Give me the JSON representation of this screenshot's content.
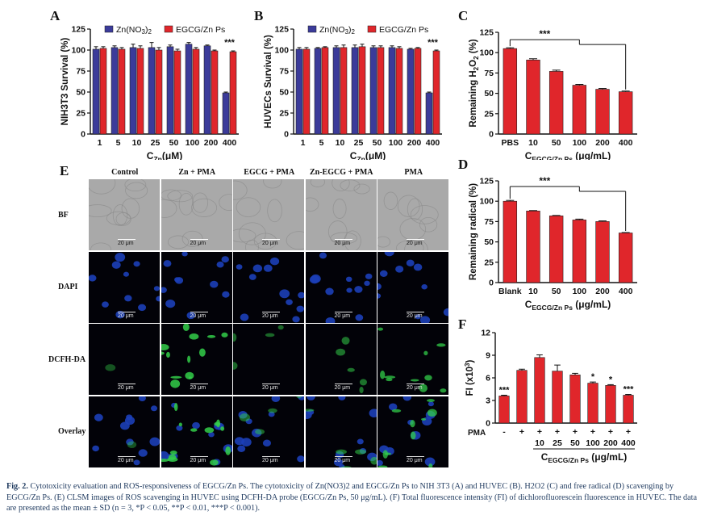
{
  "figure": {
    "caption_label": "Fig. 2.",
    "caption_text": "Cytotoxicity evaluation and ROS-responsiveness of EGCG/Zn Ps. The cytotoxicity of Zn(NO3)2 and EGCG/Zn Ps to NIH 3T3 (A) and HUVEC (B). H2O2 (C) and free radical (D) scavenging by EGCG/Zn Ps. (E) CLSM images of ROS scavenging in HUVEC using DCFH-DA probe (EGCG/Zn Ps, 50 μg/mL). (F) Total fluorescence intensity (FI) of dichlorofluorescein fluorescence in HUVEC. The data are presented as the mean ± SD (n = 3, *P < 0.05, **P < 0.01, ***P < 0.001)."
  },
  "panel_letters": {
    "a": "A",
    "b": "B",
    "c": "C",
    "d": "D",
    "e": "E",
    "f": "F"
  },
  "colors": {
    "bar_red": "#e0262b",
    "bar_blue": "#3b3b9a",
    "axis": "#111111"
  },
  "chart_data": [
    {
      "id": "A",
      "type": "bar",
      "ylabel": "NIH3T3 Survival (%)",
      "xlabel": "CZn(μM)",
      "xlabel_main": "C",
      "xlabel_sub": "Zn",
      "xlabel_tail": "(μM)",
      "categories": [
        "1",
        "5",
        "10",
        "25",
        "50",
        "100",
        "200",
        "400"
      ],
      "ylim": [
        0,
        125
      ],
      "yticks": [
        0,
        25,
        50,
        75,
        100,
        125
      ],
      "ytick_labels": [
        "0",
        "25",
        "50",
        "75",
        "100",
        "125"
      ],
      "legend_placement": "top",
      "series": [
        {
          "name": "Zn(NO3)2",
          "color": "#3b3b9a",
          "values": [
            101,
            103,
            103,
            103,
            104,
            107,
            105,
            49
          ],
          "errors": [
            3,
            2,
            4,
            6,
            2,
            2,
            1,
            1
          ]
        },
        {
          "name": "EGCG/Zn Ps",
          "color": "#e0262b",
          "values": [
            102,
            101,
            102,
            100,
            99,
            101,
            99,
            98
          ],
          "errors": [
            2,
            2,
            3,
            3,
            2,
            2,
            1,
            1
          ]
        }
      ],
      "annotations": [
        {
          "text": "***",
          "category": "400"
        }
      ]
    },
    {
      "id": "B",
      "type": "bar",
      "ylabel": "HUVECs Survival (%)",
      "xlabel": "CZn(μM)",
      "xlabel_main": "C",
      "xlabel_sub": "Zn",
      "xlabel_tail": "(μM)",
      "categories": [
        "1",
        "5",
        "10",
        "25",
        "50",
        "100",
        "200",
        "400"
      ],
      "ylim": [
        0,
        125
      ],
      "yticks": [
        0,
        25,
        50,
        75,
        100,
        125
      ],
      "ytick_labels": [
        "0",
        "25",
        "50",
        "75",
        "100",
        "125"
      ],
      "legend_placement": "top",
      "series": [
        {
          "name": "Zn(NO3)2",
          "color": "#3b3b9a",
          "values": [
            101,
            102,
            103,
            103,
            103,
            103,
            101,
            49
          ],
          "errors": [
            2,
            1,
            2,
            3,
            2,
            2,
            1,
            1
          ]
        },
        {
          "name": "EGCG/Zn Ps",
          "color": "#e0262b",
          "values": [
            101,
            103,
            103,
            104,
            103,
            102,
            102,
            99
          ],
          "errors": [
            2,
            1,
            3,
            3,
            2,
            2,
            1,
            1
          ]
        }
      ],
      "annotations": [
        {
          "text": "***",
          "category": "400"
        }
      ]
    },
    {
      "id": "C",
      "type": "bar",
      "ylabel": "Remaining H2O2 (%)",
      "xlabel": "CEGCG/Zn Ps (μg/mL)",
      "xlabel_main": "C",
      "xlabel_sub": "EGCG/Zn Ps",
      "xlabel_tail": " (μg/mL)",
      "categories": [
        "PBS",
        "10",
        "50",
        "100",
        "200",
        "400"
      ],
      "ylim": [
        0,
        125
      ],
      "yticks": [
        0,
        25,
        50,
        75,
        100,
        125
      ],
      "ytick_labels": [
        "0",
        "25",
        "50",
        "75",
        "100",
        "125"
      ],
      "series": [
        {
          "color": "#e0262b",
          "values": [
            105,
            91,
            77,
            60,
            55,
            52
          ],
          "errors": [
            1,
            1.5,
            1.5,
            1,
            1,
            0.8
          ]
        }
      ],
      "significance": "***"
    },
    {
      "id": "D",
      "type": "bar",
      "ylabel": "Remaining radical (%)",
      "xlabel": "CEGCG/Zn Ps (μg/mL)",
      "xlabel_main": "C",
      "xlabel_sub": "EGCG/Zn Ps",
      "xlabel_tail": " (μg/mL)",
      "categories": [
        "Blank",
        "10",
        "50",
        "100",
        "200",
        "400"
      ],
      "ylim": [
        0,
        125
      ],
      "yticks": [
        0,
        25,
        50,
        75,
        100,
        125
      ],
      "ytick_labels": [
        "0",
        "25",
        "50",
        "75",
        "100",
        "125"
      ],
      "series": [
        {
          "color": "#e0262b",
          "values": [
            100,
            88,
            82,
            77,
            75,
            61
          ],
          "errors": [
            1,
            0.5,
            0.5,
            1,
            0.8,
            0.5
          ]
        }
      ],
      "significance": "***"
    },
    {
      "id": "F",
      "type": "bar",
      "ylabel": "FI (x10³)",
      "xlabel": "CEGCG/Zn Ps (μg/mL)",
      "xlabel_main": "C",
      "xlabel_sub": "EGCG/Zn Ps",
      "xlabel_tail": " (μg/mL)",
      "pma_label": "PMA",
      "pma_row": [
        "-",
        "+",
        "+",
        "+",
        "+",
        "+",
        "+",
        "+"
      ],
      "categories": [
        "",
        "",
        "10",
        "25",
        "50",
        "100",
        "200",
        "400"
      ],
      "ylim": [
        0,
        12
      ],
      "yticks": [
        0,
        3,
        6,
        9,
        12
      ],
      "ytick_labels": [
        "0",
        "3",
        "6",
        "9",
        "12"
      ],
      "series": [
        {
          "color": "#e0262b",
          "values": [
            3.6,
            7.0,
            8.7,
            6.9,
            6.4,
            5.3,
            5.0,
            3.7
          ],
          "errors": [
            0.1,
            0.15,
            0.35,
            0.8,
            0.2,
            0.15,
            0.1,
            0.1
          ]
        }
      ],
      "annotations": [
        "***",
        "",
        "",
        "",
        "",
        "*",
        "*",
        "***"
      ]
    }
  ],
  "microscopy": {
    "columns": [
      "Control",
      "Zn + PMA",
      "EGCG + PMA",
      "Zn-EGCG + PMA",
      "PMA"
    ],
    "rows": [
      "BF",
      "DAPI",
      "DCFH-DA",
      "Overlay"
    ],
    "scale_label": "20 μm",
    "green_intensity": [
      0.08,
      0.9,
      0.25,
      0.35,
      0.7
    ]
  }
}
